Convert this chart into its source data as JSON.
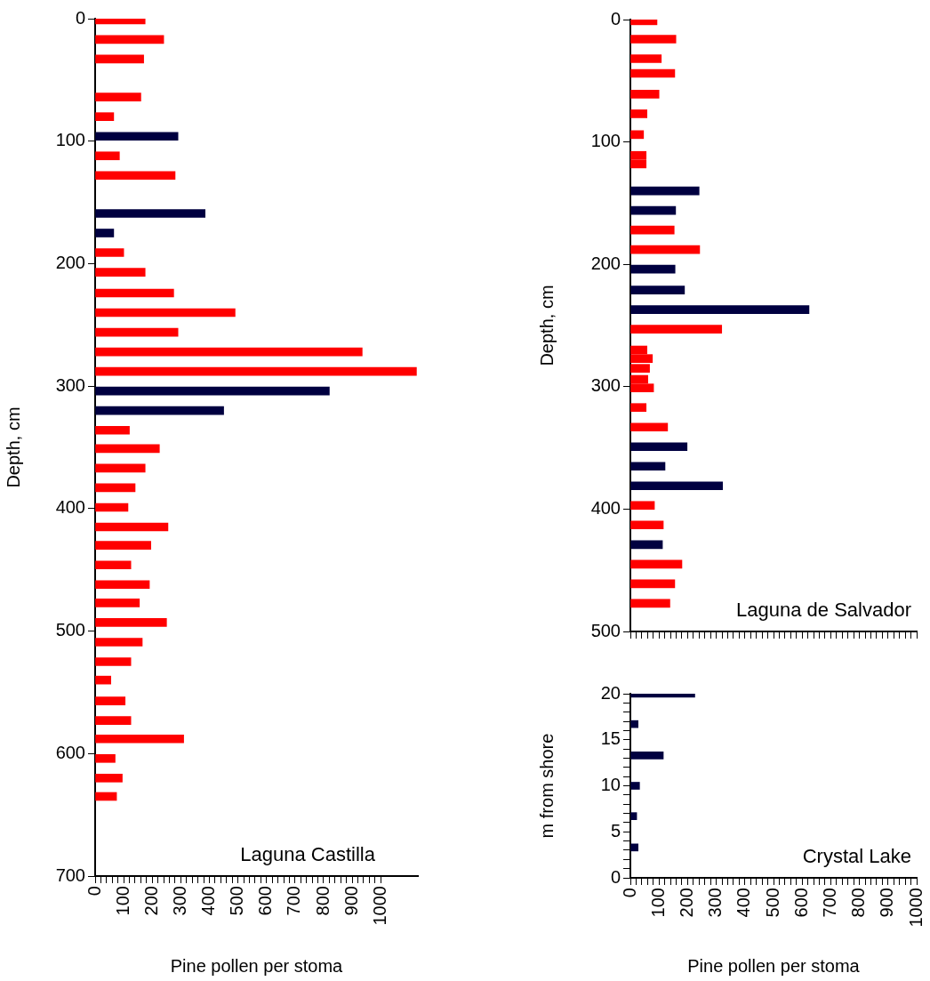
{
  "chart_data": [
    {
      "type": "bar",
      "orientation": "horizontal",
      "title": "Laguna Castilla",
      "xlabel": "Pine pollen per stoma",
      "ylabel": "Depth, cm",
      "x": [
        1,
        17,
        33,
        64,
        80,
        96,
        112,
        128,
        159,
        175,
        191,
        207,
        224,
        240,
        256,
        272,
        288,
        304,
        320,
        336,
        351,
        367,
        383,
        399,
        415,
        430,
        446,
        462,
        477,
        493,
        509,
        525,
        540,
        557,
        573,
        588,
        604,
        620,
        635
      ],
      "values": [
        175,
        240,
        170,
        160,
        65,
        290,
        85,
        280,
        385,
        65,
        100,
        175,
        275,
        490,
        290,
        935,
        1125,
        820,
        450,
        120,
        225,
        175,
        140,
        115,
        255,
        195,
        125,
        190,
        155,
        250,
        165,
        125,
        55,
        105,
        125,
        310,
        70,
        95,
        75
      ],
      "colors": [
        "#ff0000",
        "#ff0000",
        "#ff0000",
        "#ff0000",
        "#ff0000",
        "#000040",
        "#ff0000",
        "#ff0000",
        "#000040",
        "#000040",
        "#ff0000",
        "#ff0000",
        "#ff0000",
        "#ff0000",
        "#ff0000",
        "#ff0000",
        "#ff0000",
        "#000040",
        "#000040",
        "#ff0000",
        "#ff0000",
        "#ff0000",
        "#ff0000",
        "#ff0000",
        "#ff0000",
        "#ff0000",
        "#ff0000",
        "#ff0000",
        "#ff0000",
        "#ff0000",
        "#ff0000",
        "#ff0000",
        "#ff0000",
        "#ff0000",
        "#ff0000",
        "#ff0000",
        "#ff0000",
        "#ff0000",
        "#ff0000"
      ],
      "xlim": [
        0,
        1130
      ],
      "xticks": [
        0,
        {
          "value": 20,
          "label": null
        },
        {
          "value": 40,
          "label": null
        },
        {
          "value": 60,
          "label": null
        },
        {
          "value": 80,
          "label": null
        },
        100,
        {
          "value": 120,
          "label": null
        },
        {
          "value": 140,
          "label": null
        },
        {
          "value": 160,
          "label": null
        },
        {
          "value": 180,
          "label": null
        },
        200,
        {
          "value": 220,
          "label": null
        },
        {
          "value": 240,
          "label": null
        },
        {
          "value": 260,
          "label": null
        },
        {
          "value": 280,
          "label": null
        },
        300,
        {
          "value": 320,
          "label": null
        },
        {
          "value": 340,
          "label": null
        },
        {
          "value": 360,
          "label": null
        },
        {
          "value": 380,
          "label": null
        },
        400,
        {
          "value": 420,
          "label": null
        },
        {
          "value": 440,
          "label": null
        },
        {
          "value": 460,
          "label": null
        },
        {
          "value": 480,
          "label": null
        },
        500,
        {
          "value": 520,
          "label": null
        },
        {
          "value": 540,
          "label": null
        },
        {
          "value": 560,
          "label": null
        },
        {
          "value": 580,
          "label": null
        },
        600,
        {
          "value": 620,
          "label": null
        },
        {
          "value": 640,
          "label": null
        },
        {
          "value": 660,
          "label": null
        },
        {
          "value": 680,
          "label": null
        },
        700,
        {
          "value": 720,
          "label": null
        },
        {
          "value": 740,
          "label": null
        },
        {
          "value": 760,
          "label": null
        },
        {
          "value": 780,
          "label": null
        },
        800,
        {
          "value": 820,
          "label": null
        },
        {
          "value": 840,
          "label": null
        },
        {
          "value": 860,
          "label": null
        },
        {
          "value": 880,
          "label": null
        },
        900,
        {
          "value": 920,
          "label": null
        },
        {
          "value": 940,
          "label": null
        },
        {
          "value": 960,
          "label": null
        },
        {
          "value": 980,
          "label": null
        },
        1000
      ],
      "ylim": [
        700,
        0
      ],
      "yticks": [
        0,
        100,
        200,
        300,
        400,
        500,
        600,
        700
      ]
    },
    {
      "type": "bar",
      "orientation": "horizontal",
      "title": "Laguna de Salvador",
      "ylabel": "Depth, cm",
      "tick_labels": "y",
      "x": [
        1,
        16,
        32,
        44,
        61,
        77,
        94,
        111,
        118,
        140,
        156,
        172,
        188,
        204,
        221,
        237,
        253,
        270,
        277,
        285,
        294,
        301,
        317,
        333,
        349,
        365,
        381,
        397,
        413,
        429,
        445,
        461,
        477
      ],
      "values": [
        93,
        159,
        108,
        155,
        100,
        58,
        46,
        55,
        55,
        240,
        158,
        153,
        242,
        156,
        189,
        624,
        319,
        58,
        77,
        67,
        61,
        81,
        55,
        130,
        198,
        121,
        322,
        84,
        115,
        112,
        180,
        155,
        138
      ],
      "colors": [
        "#ff0000",
        "#ff0000",
        "#ff0000",
        "#ff0000",
        "#ff0000",
        "#ff0000",
        "#ff0000",
        "#ff0000",
        "#ff0000",
        "#000040",
        "#000040",
        "#ff0000",
        "#ff0000",
        "#000040",
        "#000040",
        "#000040",
        "#ff0000",
        "#ff0000",
        "#ff0000",
        "#ff0000",
        "#ff0000",
        "#ff0000",
        "#ff0000",
        "#ff0000",
        "#000040",
        "#000040",
        "#000040",
        "#ff0000",
        "#ff0000",
        "#000040",
        "#ff0000",
        "#ff0000",
        "#ff0000"
      ],
      "xlim": [
        0,
        1000
      ],
      "xticks": [
        0,
        {
          "value": 20,
          "label": null
        },
        {
          "value": 40,
          "label": null
        },
        {
          "value": 60,
          "label": null
        },
        {
          "value": 80,
          "label": null
        },
        100,
        {
          "value": 120,
          "label": null
        },
        {
          "value": 140,
          "label": null
        },
        {
          "value": 160,
          "label": null
        },
        {
          "value": 180,
          "label": null
        },
        200,
        {
          "value": 220,
          "label": null
        },
        {
          "value": 240,
          "label": null
        },
        {
          "value": 260,
          "label": null
        },
        {
          "value": 280,
          "label": null
        },
        300,
        {
          "value": 320,
          "label": null
        },
        {
          "value": 340,
          "label": null
        },
        {
          "value": 360,
          "label": null
        },
        {
          "value": 380,
          "label": null
        },
        400,
        {
          "value": 420,
          "label": null
        },
        {
          "value": 440,
          "label": null
        },
        {
          "value": 460,
          "label": null
        },
        {
          "value": 480,
          "label": null
        },
        500,
        {
          "value": 520,
          "label": null
        },
        {
          "value": 540,
          "label": null
        },
        {
          "value": 560,
          "label": null
        },
        {
          "value": 580,
          "label": null
        },
        600,
        {
          "value": 620,
          "label": null
        },
        {
          "value": 640,
          "label": null
        },
        {
          "value": 660,
          "label": null
        },
        {
          "value": 680,
          "label": null
        },
        700,
        {
          "value": 720,
          "label": null
        },
        {
          "value": 740,
          "label": null
        },
        {
          "value": 760,
          "label": null
        },
        {
          "value": 780,
          "label": null
        },
        800,
        {
          "value": 820,
          "label": null
        },
        {
          "value": 840,
          "label": null
        },
        {
          "value": 860,
          "label": null
        },
        {
          "value": 880,
          "label": null
        },
        900,
        {
          "value": 920,
          "label": null
        },
        {
          "value": 940,
          "label": null
        },
        {
          "value": 960,
          "label": null
        },
        {
          "value": 980,
          "label": null
        },
        1000
      ],
      "ylim": [
        500,
        0
      ],
      "yticks": [
        0,
        100,
        200,
        300,
        400,
        500
      ]
    },
    {
      "type": "bar",
      "orientation": "horizontal",
      "title": "Crystal Lake",
      "xlabel": "Pine pollen per stoma",
      "ylabel": "m from shore",
      "x": [
        20,
        16.7,
        13.3,
        10,
        6.7,
        3.3
      ],
      "values": [
        225,
        27,
        115,
        32,
        22,
        27
      ],
      "colors": [
        "#000040",
        "#000040",
        "#000040",
        "#000040",
        "#000040",
        "#000040"
      ],
      "xlim": [
        0,
        1000
      ],
      "xticks": [
        0,
        {
          "value": 20,
          "label": null
        },
        {
          "value": 40,
          "label": null
        },
        {
          "value": 60,
          "label": null
        },
        {
          "value": 80,
          "label": null
        },
        100,
        {
          "value": 120,
          "label": null
        },
        {
          "value": 140,
          "label": null
        },
        {
          "value": 160,
          "label": null
        },
        {
          "value": 180,
          "label": null
        },
        200,
        {
          "value": 220,
          "label": null
        },
        {
          "value": 240,
          "label": null
        },
        {
          "value": 260,
          "label": null
        },
        {
          "value": 280,
          "label": null
        },
        300,
        {
          "value": 320,
          "label": null
        },
        {
          "value": 340,
          "label": null
        },
        {
          "value": 360,
          "label": null
        },
        {
          "value": 380,
          "label": null
        },
        400,
        {
          "value": 420,
          "label": null
        },
        {
          "value": 440,
          "label": null
        },
        {
          "value": 460,
          "label": null
        },
        {
          "value": 480,
          "label": null
        },
        500,
        {
          "value": 520,
          "label": null
        },
        {
          "value": 540,
          "label": null
        },
        {
          "value": 560,
          "label": null
        },
        {
          "value": 580,
          "label": null
        },
        600,
        {
          "value": 620,
          "label": null
        },
        {
          "value": 640,
          "label": null
        },
        {
          "value": 660,
          "label": null
        },
        {
          "value": 680,
          "label": null
        },
        700,
        {
          "value": 720,
          "label": null
        },
        {
          "value": 740,
          "label": null
        },
        {
          "value": 760,
          "label": null
        },
        {
          "value": 780,
          "label": null
        },
        800,
        {
          "value": 820,
          "label": null
        },
        {
          "value": 840,
          "label": null
        },
        {
          "value": 860,
          "label": null
        },
        {
          "value": 880,
          "label": null
        },
        900,
        {
          "value": 920,
          "label": null
        },
        {
          "value": 940,
          "label": null
        },
        {
          "value": 960,
          "label": null
        },
        {
          "value": 980,
          "label": null
        },
        1000
      ],
      "ylim": [
        0,
        20
      ],
      "yticks": [
        0,
        {
          "value": 1,
          "label": null
        },
        {
          "value": 2,
          "label": null
        },
        {
          "value": 3,
          "label": null
        },
        {
          "value": 4,
          "label": null
        },
        5,
        {
          "value": 6,
          "label": null
        },
        {
          "value": 7,
          "label": null
        },
        {
          "value": 8,
          "label": null
        },
        {
          "value": 9,
          "label": null
        },
        10,
        {
          "value": 11,
          "label": null
        },
        {
          "value": 12,
          "label": null
        },
        {
          "value": 13,
          "label": null
        },
        {
          "value": 14,
          "label": null
        },
        15,
        {
          "value": 16,
          "label": null
        },
        {
          "value": 17,
          "label": null
        },
        {
          "value": 18,
          "label": null
        },
        {
          "value": 19,
          "label": null
        },
        20
      ]
    }
  ]
}
